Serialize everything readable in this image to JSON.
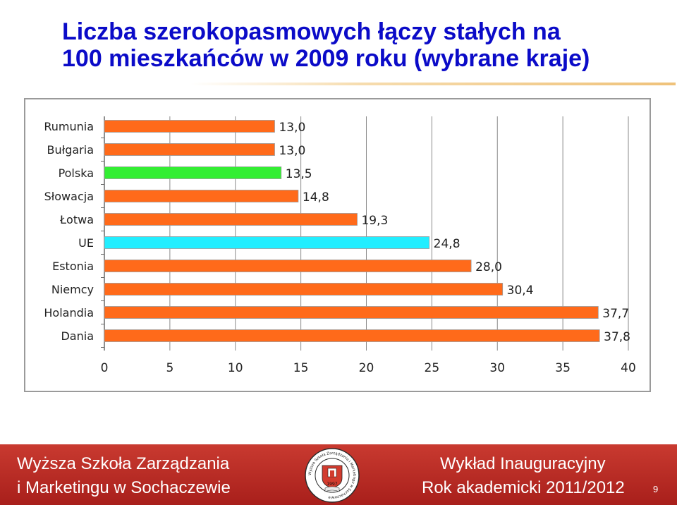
{
  "title": {
    "line1": "Liczba szerokopasmowych łączy stałych na",
    "line2": "100 mieszkańców w 2009 roku (wybrane kraje)"
  },
  "colors": {
    "title": "#0b0bc8",
    "bar_default": "#ff6a1a",
    "bar_poland": "#33ee33",
    "bar_eu": "#22eeff",
    "gridline": "#8a8a8a",
    "footer": "#b52a24"
  },
  "chart_data": {
    "type": "bar",
    "orientation": "horizontal",
    "title": "",
    "xlabel": "",
    "ylabel": "",
    "xlim": [
      0,
      40
    ],
    "xticks": [
      0,
      5,
      10,
      15,
      20,
      25,
      30,
      35,
      40
    ],
    "grid": true,
    "categories": [
      "Rumunia",
      "Bułgaria",
      "Polska",
      "Słowacja",
      "Łotwa",
      "UE",
      "Estonia",
      "Niemcy",
      "Holandia",
      "Dania"
    ],
    "values": [
      13.0,
      13.0,
      13.5,
      14.8,
      19.3,
      24.8,
      28.0,
      30.4,
      37.7,
      37.8
    ],
    "value_labels": [
      "13,0",
      "13,0",
      "13,5",
      "14,8",
      "19,3",
      "24,8",
      "28,0",
      "30,4",
      "37,7",
      "37,8"
    ],
    "bar_colors": [
      "#ff6a1a",
      "#ff6a1a",
      "#33ee33",
      "#ff6a1a",
      "#ff6a1a",
      "#22eeff",
      "#ff6a1a",
      "#ff6a1a",
      "#ff6a1a",
      "#ff6a1a"
    ]
  },
  "footer": {
    "school_line1": "Wyższa Szkoła Zarządzania",
    "school_line2": "i Marketingu w Sochaczewie",
    "lecture_line1": "Wykład Inauguracyjny",
    "lecture_line2": "Rok akademicki 2011/2012",
    "page_number": "9",
    "seal_year": "1997",
    "seal_ring_text": "Wyższa Szkoła Zarządzania i Marketingu w Sochaczewie"
  }
}
